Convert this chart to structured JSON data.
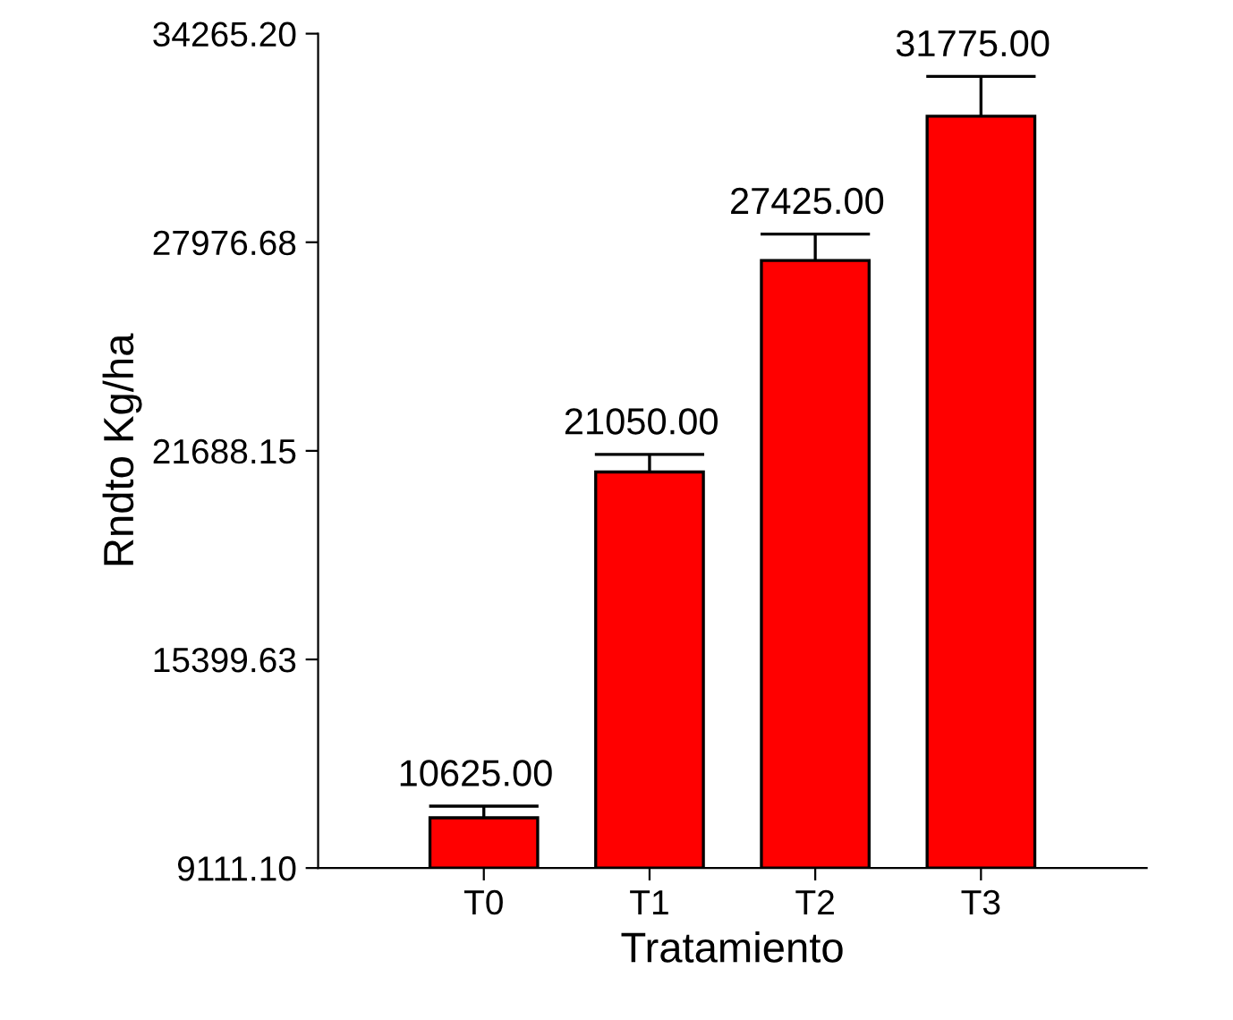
{
  "chart_data": {
    "type": "bar",
    "xlabel": "Tratamiento",
    "ylabel": "Rndto Kg/ha",
    "categories": [
      "T0",
      "T1",
      "T2",
      "T3"
    ],
    "values": [
      10625,
      21050,
      27425,
      31775
    ],
    "errors": [
      350,
      530,
      800,
      1200
    ],
    "value_labels": [
      "10625.00",
      "21050.00",
      "27425.00",
      "31775.00"
    ],
    "color": "#ff0000",
    "ylim": [
      9111.1,
      34265.2
    ],
    "yticks": [
      {
        "value": 9111.1,
        "label": "9111.10"
      },
      {
        "value": 15399.63,
        "label": "15399.63"
      },
      {
        "value": 21688.15,
        "label": "21688.15"
      },
      {
        "value": 27976.68,
        "label": "27976.68"
      },
      {
        "value": 34265.2,
        "label": "34265.20"
      }
    ],
    "grid": false,
    "legend": false
  }
}
